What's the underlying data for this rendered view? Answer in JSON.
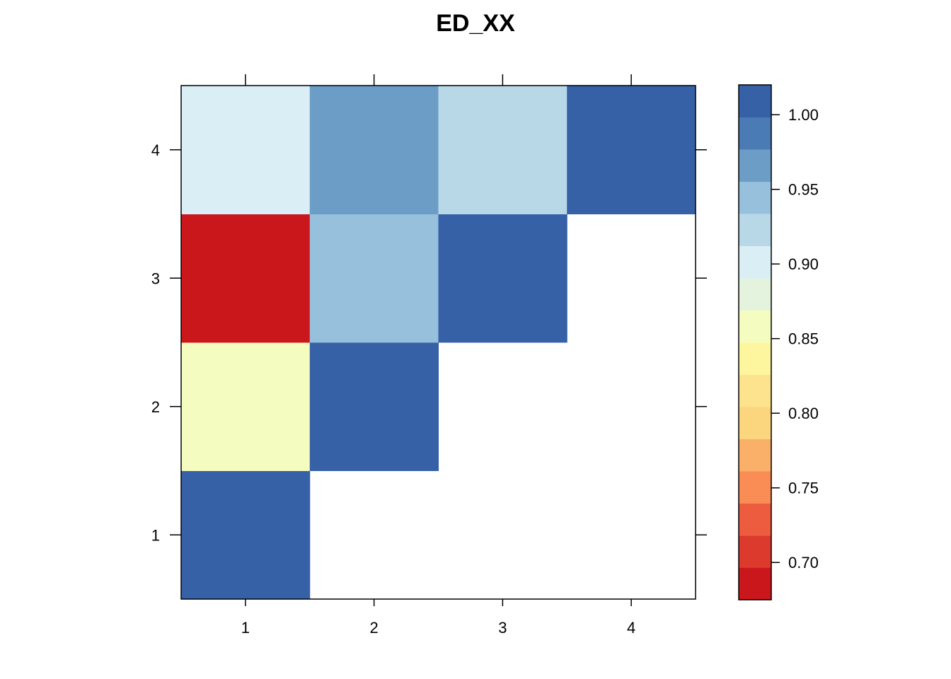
{
  "chart_data": {
    "type": "heatmap",
    "title": "ED_XX",
    "xlabel": "",
    "ylabel": "",
    "x_categories": [
      "1",
      "2",
      "3",
      "4"
    ],
    "y_categories": [
      "1",
      "2",
      "3",
      "4"
    ],
    "cells": [
      {
        "x": "1",
        "y": "1",
        "value": 1.0
      },
      {
        "x": "1",
        "y": "2",
        "value": 0.86
      },
      {
        "x": "1",
        "y": "3",
        "value": 0.68
      },
      {
        "x": "1",
        "y": "4",
        "value": 0.9
      },
      {
        "x": "2",
        "y": "2",
        "value": 1.0
      },
      {
        "x": "2",
        "y": "3",
        "value": 0.94
      },
      {
        "x": "2",
        "y": "4",
        "value": 0.97
      },
      {
        "x": "3",
        "y": "3",
        "value": 1.0
      },
      {
        "x": "3",
        "y": "4",
        "value": 0.92
      },
      {
        "x": "4",
        "y": "4",
        "value": 1.0
      }
    ],
    "colorbar": {
      "range": [
        0.675,
        1.02
      ],
      "ticks": [
        "0.70",
        "0.75",
        "0.80",
        "0.85",
        "0.90",
        "0.95",
        "1.00"
      ],
      "bins": [
        {
          "lo": 0.675,
          "hi": 0.6966,
          "color": "#CA171C"
        },
        {
          "lo": 0.6966,
          "hi": 0.7181,
          "color": "#DB3A2D"
        },
        {
          "lo": 0.7181,
          "hi": 0.7397,
          "color": "#EE5C3F"
        },
        {
          "lo": 0.7397,
          "hi": 0.7613,
          "color": "#F98D55"
        },
        {
          "lo": 0.7613,
          "hi": 0.7828,
          "color": "#FAB069"
        },
        {
          "lo": 0.7828,
          "hi": 0.8044,
          "color": "#FCD67E"
        },
        {
          "lo": 0.8044,
          "hi": 0.8259,
          "color": "#FEE38E"
        },
        {
          "lo": 0.8259,
          "hi": 0.8475,
          "color": "#FEF69E"
        },
        {
          "lo": 0.8475,
          "hi": 0.8691,
          "color": "#F5FCBF"
        },
        {
          "lo": 0.8691,
          "hi": 0.8906,
          "color": "#E4F3DE"
        },
        {
          "lo": 0.8906,
          "hi": 0.9122,
          "color": "#DAEFF5"
        },
        {
          "lo": 0.9122,
          "hi": 0.9338,
          "color": "#B8D8E8"
        },
        {
          "lo": 0.9338,
          "hi": 0.9553,
          "color": "#96C0DB"
        },
        {
          "lo": 0.9553,
          "hi": 0.9769,
          "color": "#6C9DC6"
        },
        {
          "lo": 0.9769,
          "hi": 0.9984,
          "color": "#4A7BB5"
        },
        {
          "lo": 0.9984,
          "hi": 1.02,
          "color": "#3661A6"
        }
      ]
    },
    "empty_color": "#FFFFFF",
    "grid": false,
    "legend": "right"
  }
}
